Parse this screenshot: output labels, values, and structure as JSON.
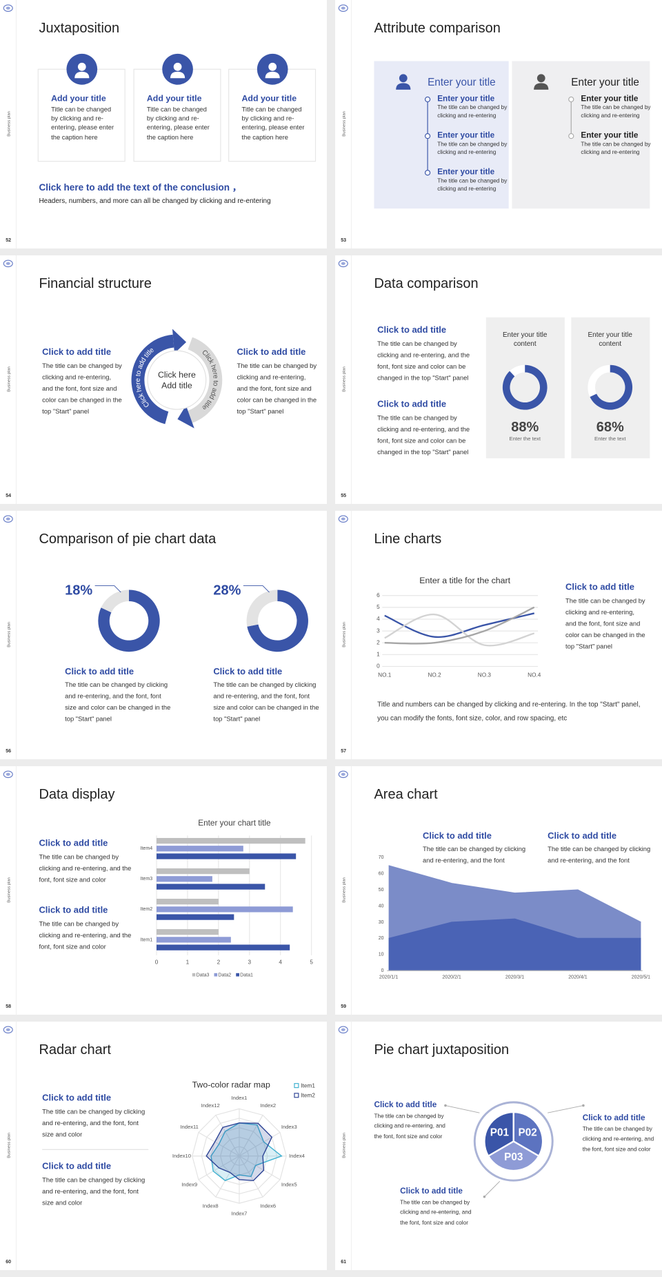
{
  "slides": [
    {
      "number": "52",
      "sidebar": "Business plan",
      "title": "Juxtaposition",
      "cards": [
        {
          "title": "Add your title",
          "text": "Title can be changed by clicking and re-entering, please enter the caption here"
        },
        {
          "title": "Add your title",
          "text": "Title can be changed by clicking and re-entering, please enter the caption here"
        },
        {
          "title": "Add your title",
          "text": "Title can be changed by clicking and re-entering, please enter the caption here"
        }
      ],
      "conclusion": {
        "title": "Click here to add the text of the conclusion ，",
        "text": "Headers, numbers, and more can all be changed by clicking and re-entering"
      }
    },
    {
      "number": "53",
      "sidebar": "Business plan",
      "title": "Attribute comparison",
      "panels": [
        {
          "heading": "Enter your title",
          "items": [
            {
              "title": "Enter your title",
              "text": "The title can be changed by clicking and re-entering"
            },
            {
              "title": "Enter your title",
              "text": "The title can be changed by clicking and re-entering"
            },
            {
              "title": "Enter your title",
              "text": "The title can be changed by clicking and re-entering"
            }
          ]
        },
        {
          "heading": "Enter your title",
          "items": [
            {
              "title": "Enter your title",
              "text": "The title can be changed by clicking and re-entering"
            },
            {
              "title": "Enter your title",
              "text": "The title can be changed by clicking and re-entering"
            }
          ]
        }
      ]
    },
    {
      "number": "54",
      "sidebar": "Business plan",
      "title": "Financial structure",
      "blocks": [
        {
          "title": "Click to add title",
          "text": "The title can be changed by clicking and re-entering, and the font, font size and color can be changed in the top \"Start\" panel"
        },
        {
          "title": "Click to add title",
          "text": "The title can be changed by clicking and re-entering, and the font, font size and color can be changed in the top \"Start\" panel"
        }
      ],
      "center": [
        "Click here",
        "Add title"
      ],
      "arc_labels": [
        "Click here to add title",
        "Click here to add title"
      ]
    },
    {
      "number": "55",
      "sidebar": "Business plan",
      "title": "Data comparison",
      "blocks": [
        {
          "title": "Click to add title",
          "text": "The title can be changed by clicking and re-entering, and the font, font size and color can be changed in the top \"Start\" panel"
        },
        {
          "title": "Click to add title",
          "text": "The title can be changed by clicking and re-entering, and the font, font size and color can be changed in the top \"Start\" panel"
        }
      ],
      "cards": [
        {
          "title": "Enter your title content",
          "value": 88,
          "value_label": "88%",
          "caption": "Enter the text",
          "color": "#3a55a8"
        },
        {
          "title": "Enter your title content",
          "value": 68,
          "value_label": "68%",
          "caption": "Enter the text",
          "color": "#3a55a8"
        }
      ]
    },
    {
      "number": "56",
      "sidebar": "Business plan",
      "title": "Comparison of pie chart data",
      "charts": [
        {
          "value": 18,
          "value_label": "18%",
          "color": "#e3e3e3",
          "title": "Click to add title",
          "text": "The title can be changed by clicking and re-entering, and the font, font size and color can be changed in the top \"Start\" panel"
        },
        {
          "value": 28,
          "value_label": "28%",
          "color": "#e3e3e3",
          "title": "Click to add title",
          "text": "The title can be changed by clicking and re-entering, and the font, font size and color can be changed in the top \"Start\" panel"
        }
      ]
    },
    {
      "number": "57",
      "sidebar": "Business plan",
      "title": "Line charts",
      "chart": {
        "type": "line",
        "title": "Enter a title for the chart",
        "categories": [
          "NO.1",
          "NO.2",
          "NO.3",
          "NO.4"
        ],
        "series": [
          {
            "color": "#3a55a8",
            "values": [
              4.3,
              2.5,
              3.5,
              4.5
            ]
          },
          {
            "color": "#d3d3d3",
            "values": [
              2.4,
              4.4,
              1.8,
              2.8
            ]
          },
          {
            "color": "#a6a6a6",
            "values": [
              2.0,
              2.0,
              3.0,
              5.0
            ]
          }
        ],
        "ylim": [
          0,
          6
        ],
        "yticks": [
          0,
          1,
          2,
          3,
          4,
          5,
          6
        ],
        "grid": true
      },
      "side": {
        "title": "Click to add title",
        "text": "The title can be changed by clicking and re-entering, and the font, font size and color can be changed in the top \"Start\" panel"
      },
      "note": "Title and numbers can be changed by clicking and re-entering. In the top \"Start\" panel, you can modify the fonts, font size, color, and row spacing, etc"
    },
    {
      "number": "58",
      "sidebar": "Business plan",
      "title": "Data display",
      "blocks": [
        {
          "title": "Click to add title",
          "text": "The title can be changed by clicking and re-entering, and the font, font size and color"
        },
        {
          "title": "Click to add title",
          "text": "The title can be changed by clicking and re-entering, and the font, font size and color"
        }
      ],
      "chart": {
        "type": "bar",
        "title": "Enter your chart title",
        "categories": [
          "Item1",
          "Item2",
          "Item3",
          "Item4"
        ],
        "series": [
          {
            "name": "Data1",
            "color": "#3a55a8",
            "values": [
              4.3,
              2.5,
              3.5,
              4.5
            ]
          },
          {
            "name": "Data2",
            "color": "#8e9bd6",
            "values": [
              2.4,
              4.4,
              1.8,
              2.8
            ]
          },
          {
            "name": "Data3",
            "color": "#bfbfbf",
            "values": [
              2.0,
              2.0,
              3.0,
              4.8
            ]
          }
        ],
        "xlim": [
          0,
          5
        ],
        "xticks": [
          0,
          1,
          2,
          3,
          4,
          5
        ],
        "grid": true
      }
    },
    {
      "number": "59",
      "sidebar": "Business plan",
      "title": "Area chart",
      "blocks": [
        {
          "title": "Click to add title",
          "text": "The title can be changed by clicking and re-entering, and the font"
        },
        {
          "title": "Click to add title",
          "text": "The title can be changed by clicking and re-entering, and the font"
        }
      ],
      "chart": {
        "type": "area",
        "categories": [
          "2020/1/1",
          "2020/2/1",
          "2020/3/1",
          "2020/4/1",
          "2020/5/1"
        ],
        "series": [
          {
            "color": "#7b8cc8",
            "values": [
              65,
              54,
              48,
              50,
              30
            ]
          },
          {
            "color": "#4a63b5",
            "values": [
              20,
              30,
              32,
              20,
              20
            ]
          }
        ],
        "ylim": [
          0,
          70
        ],
        "yticks": [
          0,
          10,
          20,
          30,
          40,
          50,
          60,
          70
        ]
      }
    },
    {
      "number": "60",
      "sidebar": "Business plan",
      "title": "Radar chart",
      "blocks": [
        {
          "title": "Click to add title",
          "text": "The title can be changed by clicking and re-entering, and the font, font size and color"
        },
        {
          "title": "Click to add title",
          "text": "The title can be changed by clicking and re-entering, and the font, font size and color"
        }
      ],
      "chart": {
        "type": "radar",
        "title": "Two-color radar map",
        "categories": [
          "Index1",
          "Index2",
          "Index3",
          "Index4",
          "Index5",
          "Index6",
          "Index7",
          "Index8",
          "Index9",
          "Index10",
          "Index11",
          "Index12"
        ],
        "series": [
          {
            "name": "Item1",
            "color": "#3fb0d0",
            "values": [
              3.5,
              3.8,
              3.0,
              4.5,
              2.0,
              2.5,
              2.0,
              3.0,
              3.2,
              3.0,
              2.5,
              3.0
            ]
          },
          {
            "name": "Item2",
            "color": "#2e4596",
            "values": [
              3.5,
              4.0,
              4.0,
              2.5,
              3.0,
              3.0,
              2.5,
              2.0,
              2.5,
              3.5,
              3.0,
              3.5
            ]
          }
        ],
        "rlim": [
          0,
          5
        ]
      }
    },
    {
      "number": "61",
      "sidebar": "Business plan",
      "title": "Pie chart juxtaposition",
      "blocks": [
        {
          "title": "Click to add title",
          "text": "The title can be changed by clicking and re-entering, and the font, font size and color"
        },
        {
          "title": "Click to add title",
          "text": "The title can be changed by clicking and re-entering, and the font, font size and color"
        },
        {
          "title": "Click to add title",
          "text": "The title can be changed by clicking and re-entering, and the font, font size and color"
        }
      ],
      "chart": {
        "type": "pie",
        "categories": [
          "P01",
          "P02",
          "P03"
        ],
        "values": [
          33.3,
          33.3,
          33.3
        ],
        "colors": [
          "#3a55a8",
          "#5c73c0",
          "#8e9bd6"
        ]
      }
    }
  ]
}
